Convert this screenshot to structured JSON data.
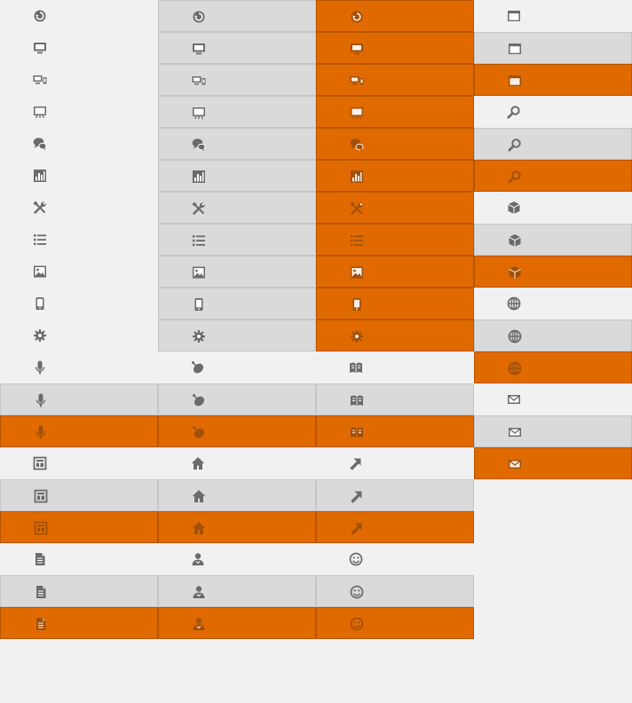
{
  "colors": {
    "background": "#f1f1f1",
    "gray_state": "#dadada",
    "orange_state": "#e06a00",
    "icon_normal": "#6b6b6b",
    "icon_on_orange": "#9a4e0c"
  },
  "groups": [
    {
      "states": [
        "normal",
        "gray",
        "orange",
        "orange"
      ],
      "icons": [
        "refresh-icon",
        "monitor-icon",
        "devices-icon",
        "presentation-icon",
        "chat-icon",
        "bar-chart-icon",
        "tools-icon",
        "list-icon",
        "image-icon",
        "mobile-icon",
        "settings-gear-icon"
      ]
    },
    {
      "states": [
        "normal",
        "gray",
        "orange"
      ],
      "icons": [
        "window-icon",
        "search-icon",
        "package-icon",
        "globe-icon",
        "mail-icon"
      ]
    },
    {
      "states": [
        "normal",
        "gray",
        "orange"
      ],
      "icons": [
        "microphone-icon",
        "satellite-dish-icon",
        "book-icon"
      ]
    },
    {
      "states": [
        "normal",
        "gray",
        "orange"
      ],
      "icons": [
        "layout-icon",
        "home-icon",
        "arrow-icon"
      ]
    },
    {
      "states": [
        "normal",
        "gray",
        "orange"
      ],
      "icons": [
        "document-icon",
        "user-icon",
        "smiley-icon"
      ]
    }
  ]
}
